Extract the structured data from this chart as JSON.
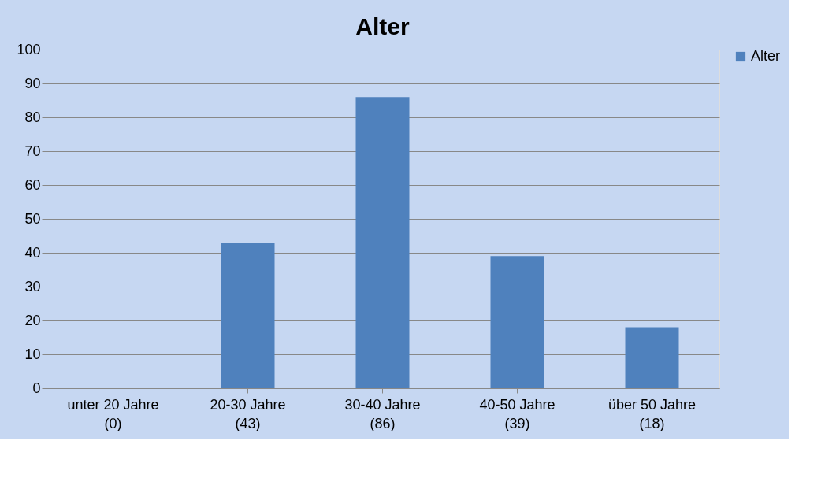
{
  "chart_data": {
    "type": "bar",
    "title": "Alter",
    "categories": [
      "unter 20 Jahre\n(0)",
      "20-30 Jahre\n(43)",
      "30-40 Jahre\n(86)",
      "40-50 Jahre\n(39)",
      "über 50 Jahre\n(18)"
    ],
    "series": [
      {
        "name": "Alter",
        "color": "#4f81bd",
        "values": [
          0,
          43,
          86,
          39,
          18
        ]
      }
    ],
    "ylim": [
      0,
      100
    ],
    "yticks": [
      0,
      10,
      20,
      30,
      40,
      50,
      60,
      70,
      80,
      90,
      100
    ],
    "grid": "y",
    "legend": "right"
  }
}
